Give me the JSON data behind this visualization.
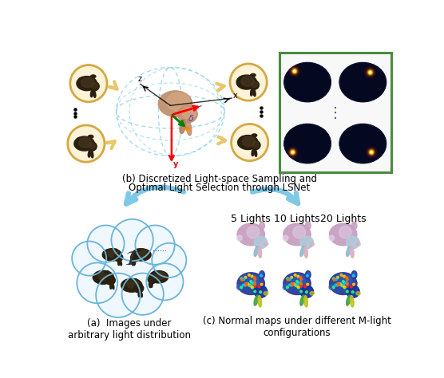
{
  "background_color": "#ffffff",
  "panel_b_text_line1": "(b) Discretized Light-space Sampling and",
  "panel_b_text_line2": "Optimal Light Selection through LSNet",
  "panel_a_label": "(a)  Images under\narbitrary light distribution",
  "panel_c_label": "(c) Normal maps under different M-light\nconfigurations",
  "lights_5": "5 Lights",
  "lights_10": "10 Lights",
  "lights_20": "20 Lights",
  "green_box_color": "#4a8c3f",
  "cloud_edge_color": "#6ab4d8",
  "cloud_face_color": "#e8f4fb",
  "arrow_yellow": "#e8c86a",
  "arrow_blue": "#7ec8e8",
  "circle_edge_color": "#d4a843",
  "circle_face_color": "#fdf3d8",
  "font_size_labels": 8,
  "font_size_lights": 9,
  "sphere_color": "#7ec8e8",
  "green_box_face": "#f8f8f8"
}
